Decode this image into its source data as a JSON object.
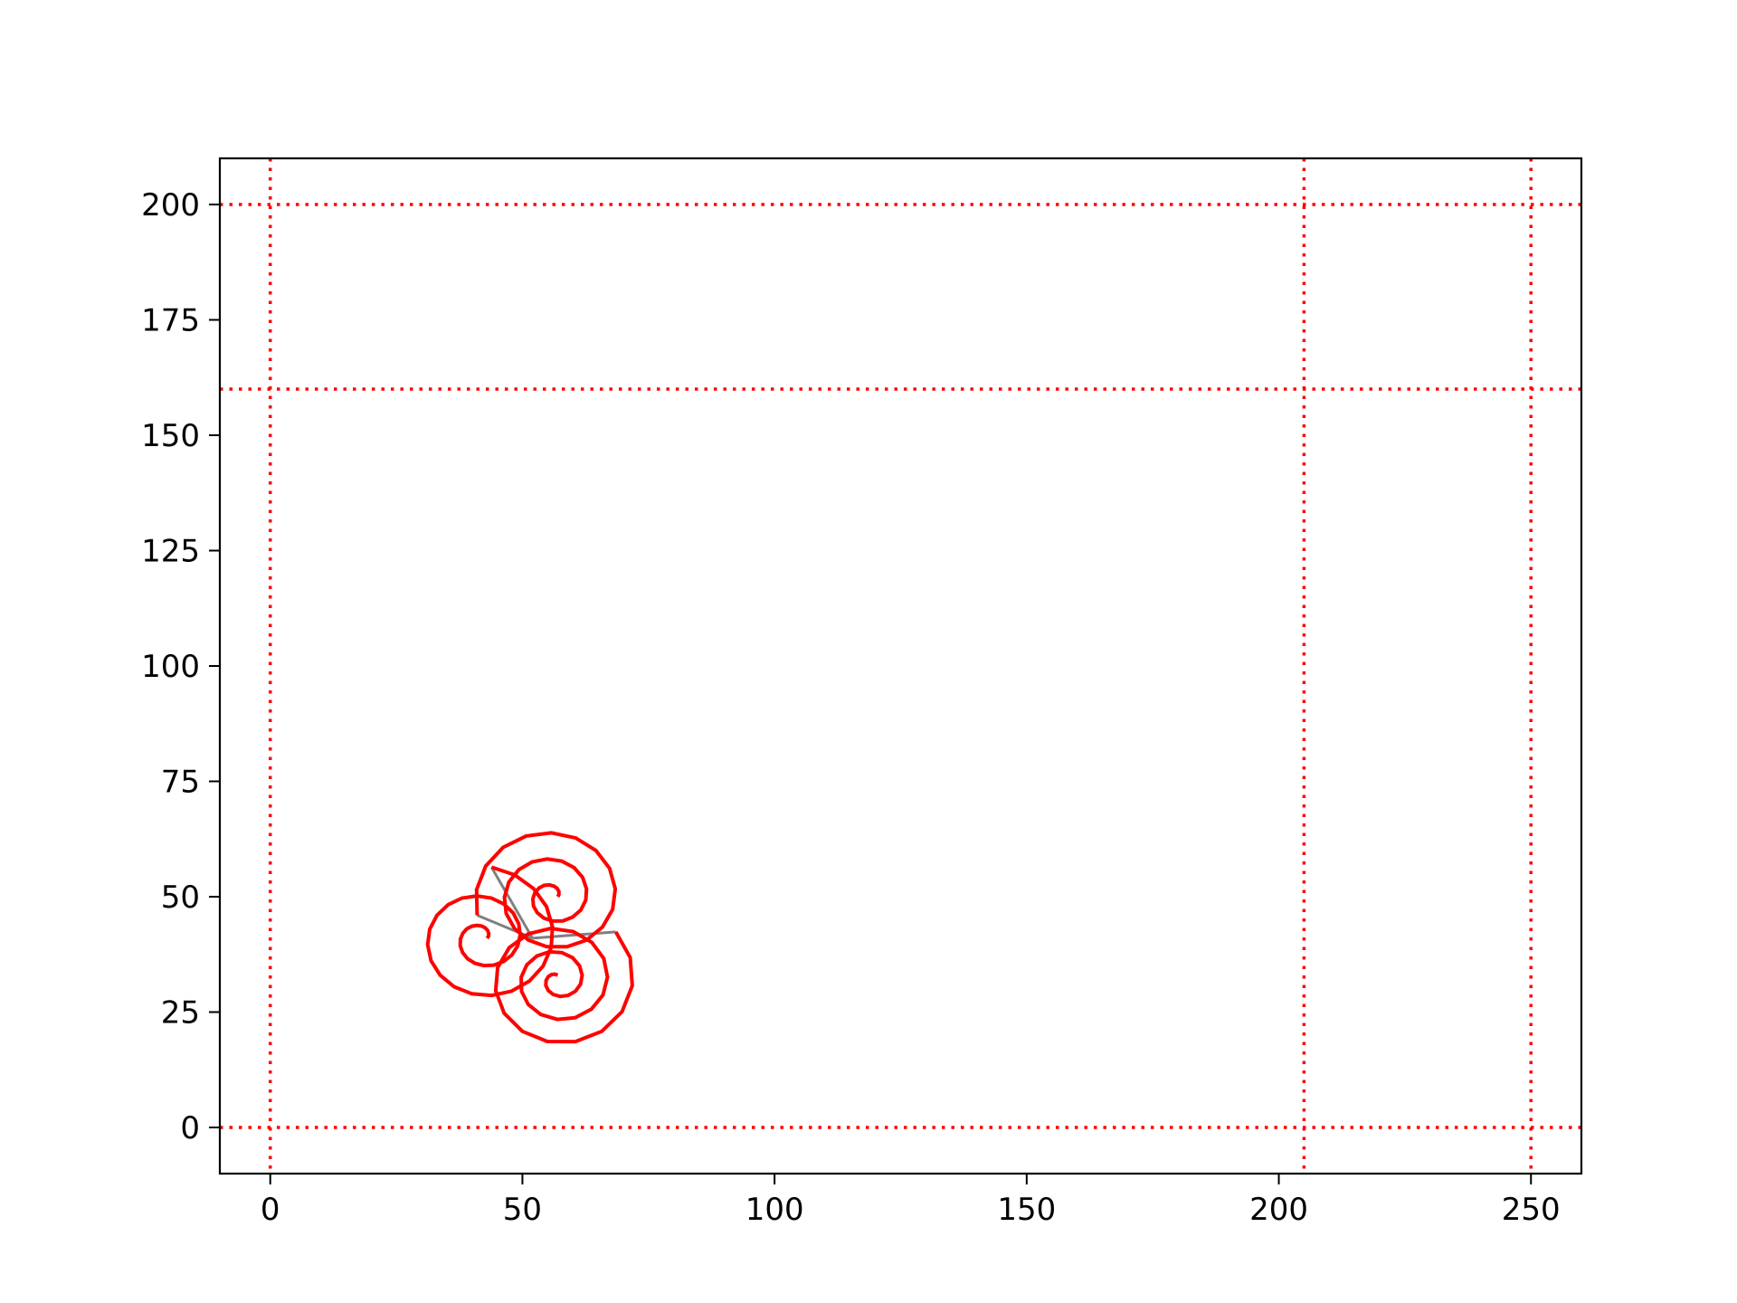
{
  "chart_data": {
    "type": "line",
    "title": "",
    "xlabel": "",
    "ylabel": "",
    "xlim": [
      -10,
      260
    ],
    "ylim": [
      -10,
      210
    ],
    "grid": false,
    "x_ticks": [
      0,
      50,
      100,
      150,
      200,
      250
    ],
    "x_tick_labels": [
      "0",
      "50",
      "100",
      "150",
      "200",
      "250"
    ],
    "y_ticks": [
      0,
      25,
      50,
      75,
      100,
      125,
      150,
      175,
      200
    ],
    "y_tick_labels": [
      "0",
      "25",
      "50",
      "75",
      "100",
      "125",
      "150",
      "175",
      "200"
    ],
    "reference_lines": {
      "color": "#ff0000",
      "style": "dotted",
      "vertical_x": [
        0,
        205,
        250
      ],
      "horizontal_y": [
        0,
        160,
        200
      ]
    },
    "spiral_color": "#ff0000",
    "connector_color": "#808080",
    "triskelion_center": [
      52,
      41
    ],
    "spirals": [
      {
        "center": [
          56,
          50
        ],
        "inner_angle_deg": 0,
        "outer_angle_deg": 195,
        "turns": 2.5,
        "outer_radius": 15.5
      },
      {
        "center": [
          42,
          41
        ],
        "inner_angle_deg": 0,
        "outer_angle_deg": 83,
        "turns": 2.5,
        "outer_radius": 15.5
      },
      {
        "center": [
          57,
          32
        ],
        "inner_angle_deg": 90,
        "outer_angle_deg": 42,
        "turns": 2.5,
        "outer_radius": 15.5
      }
    ]
  }
}
